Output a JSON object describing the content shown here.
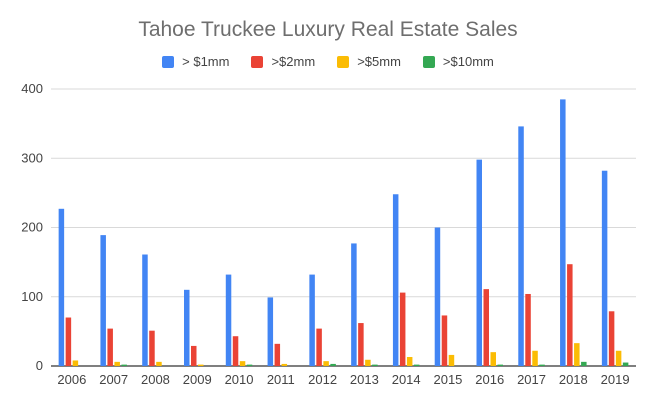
{
  "chart_data": {
    "type": "bar",
    "title": "Tahoe Truckee Luxury Real Estate Sales",
    "xlabel": "",
    "ylabel": "",
    "ylim": [
      0,
      400
    ],
    "yticks": [
      0,
      100,
      200,
      300,
      400
    ],
    "grid": true,
    "legend_position": "top",
    "categories": [
      "2006",
      "2007",
      "2008",
      "2009",
      "2010",
      "2011",
      "2012",
      "2013",
      "2014",
      "2015",
      "2016",
      "2017",
      "2018",
      "2019"
    ],
    "series": [
      {
        "name": "> $1mm",
        "color": "#4285f4",
        "values": [
          227,
          189,
          161,
          110,
          132,
          99,
          132,
          177,
          248,
          200,
          298,
          346,
          385,
          282
        ]
      },
      {
        "name": ">$2mm",
        "color": "#ea4335",
        "values": [
          70,
          54,
          51,
          29,
          43,
          32,
          54,
          62,
          106,
          73,
          111,
          104,
          147,
          79
        ]
      },
      {
        "name": ">$5mm",
        "color": "#fbbc04",
        "values": [
          8,
          6,
          6,
          2,
          7,
          3,
          7,
          9,
          13,
          16,
          20,
          22,
          33,
          22
        ]
      },
      {
        "name": ">$10mm",
        "color": "#34a853",
        "values": [
          0,
          2,
          0,
          0,
          2,
          0,
          3,
          2,
          2,
          0,
          2,
          2,
          6,
          5
        ]
      }
    ]
  }
}
